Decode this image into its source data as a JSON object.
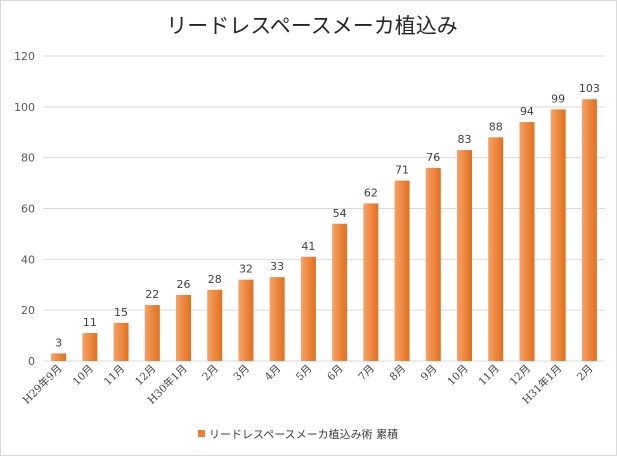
{
  "chart_data": {
    "type": "bar",
    "title": "リードレスペースメーカ植込み",
    "xlabel": "",
    "ylabel": "",
    "ylim": [
      0,
      120
    ],
    "yticks": [
      0,
      20,
      40,
      60,
      80,
      100,
      120
    ],
    "grid": true,
    "legend_position": "bottom",
    "categories": [
      "H29年9月",
      "10月",
      "11月",
      "12月",
      "H30年1月",
      "2月",
      "3月",
      "4月",
      "5月",
      "6月",
      "7月",
      "8月",
      "9月",
      "10月",
      "11月",
      "12月",
      "H31年1月",
      "2月"
    ],
    "series": [
      {
        "name": "リードレスペースメーカ植込み術 累積",
        "color": "#ed7d31",
        "values": [
          3,
          11,
          15,
          22,
          26,
          28,
          32,
          33,
          41,
          54,
          62,
          71,
          76,
          83,
          88,
          94,
          99,
          103
        ]
      }
    ]
  }
}
